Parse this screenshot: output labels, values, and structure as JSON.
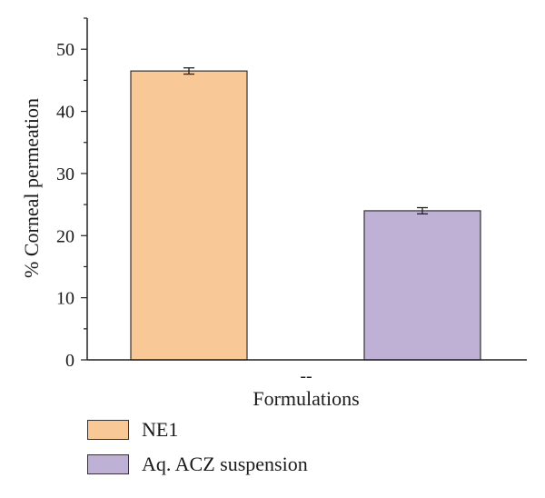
{
  "chart_data": {
    "type": "bar",
    "title": "",
    "xlabel": "Formulations",
    "ylabel": "% Corneal permeation",
    "x_tick_label": "--",
    "ylim": [
      0,
      55
    ],
    "yticks": [
      0,
      10,
      20,
      30,
      40,
      50
    ],
    "grid": false,
    "legend_position": "bottom-left",
    "series": [
      {
        "name": "NE1",
        "value": 46.5,
        "error": 0.5,
        "color": "#f9c897"
      },
      {
        "name": "Aq. ACZ suspension",
        "value": 24.0,
        "error": 0.5,
        "color": "#bfb0d6"
      }
    ]
  }
}
